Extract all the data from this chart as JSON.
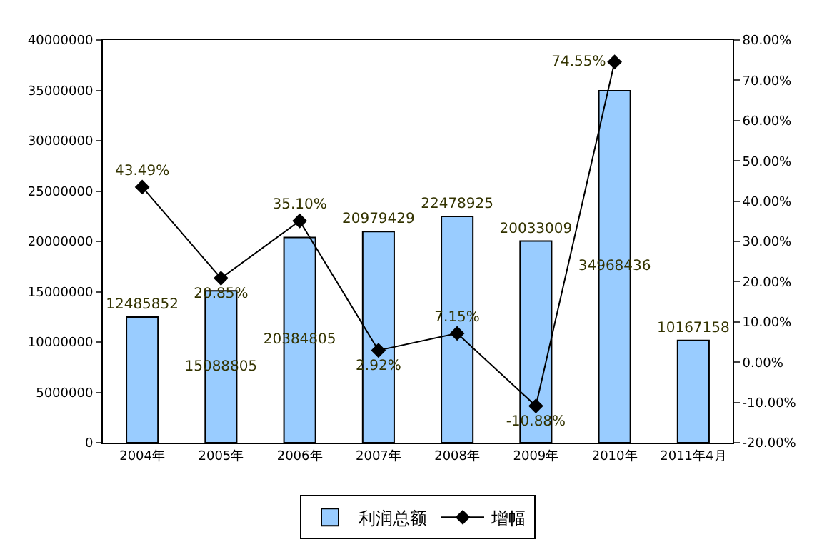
{
  "chart_data": {
    "type": "bar",
    "categories": [
      "2004年",
      "2005年",
      "2006年",
      "2007年",
      "2008年",
      "2009年",
      "2010年",
      "2011年4月"
    ],
    "series": [
      {
        "name": "利润总额",
        "color": "#99ccff",
        "values": [
          12485852,
          15088805,
          20384805,
          20979429,
          22478925,
          20033009,
          34968436,
          10167158
        ],
        "value_labels": [
          "12485852",
          "15088805",
          "20384805",
          "20979429",
          "22478925",
          "20033009",
          "34968436",
          "10167158"
        ]
      },
      {
        "name": "增幅",
        "type": "line",
        "axis": "y2",
        "color": "#000000",
        "marker": "diamond",
        "values": [
          43.49,
          20.85,
          35.1,
          2.92,
          7.15,
          -10.88,
          74.55,
          null
        ],
        "value_labels": [
          "43.49%",
          "20.85%",
          "35.10%",
          "2.92%",
          "7.15%",
          "-10.88%",
          "74.55%",
          null
        ]
      }
    ],
    "ylim": [
      0,
      40000000
    ],
    "yticks": [
      0,
      5000000,
      10000000,
      15000000,
      20000000,
      25000000,
      30000000,
      35000000,
      40000000
    ],
    "y2lim": [
      -20,
      80
    ],
    "y2ticks": [
      {
        "value": -20,
        "label": "-20.00%"
      },
      {
        "value": -10,
        "label": "-10.00%"
      },
      {
        "value": 0,
        "label": "0.00%"
      },
      {
        "value": 10,
        "label": "10.00%"
      },
      {
        "value": 20,
        "label": "20.00%"
      },
      {
        "value": 30,
        "label": "30.00%"
      },
      {
        "value": 40,
        "label": "40.00%"
      },
      {
        "value": 50,
        "label": "50.00%"
      },
      {
        "value": 60,
        "label": "60.00%"
      },
      {
        "value": 70,
        "label": "70.00%"
      },
      {
        "value": 80,
        "label": "80.00%"
      }
    ],
    "legend": "bottom"
  }
}
